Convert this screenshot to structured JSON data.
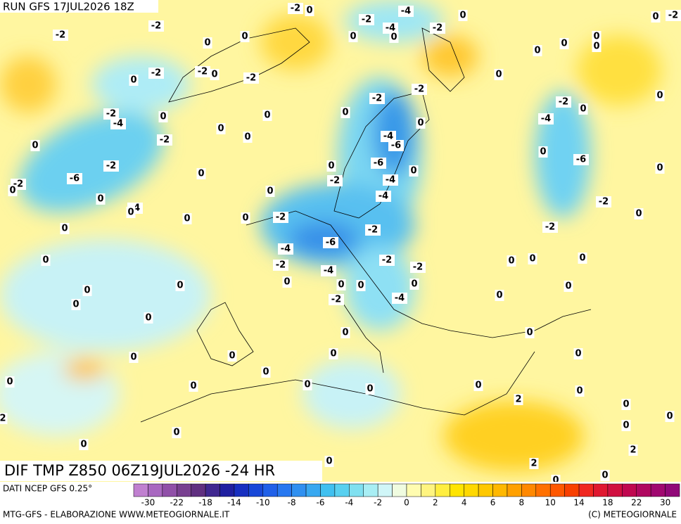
{
  "header": {
    "run": "RUN GFS 17JUL2026 18Z"
  },
  "map": {
    "title": "DIF TMP Z850 06Z19JUL2026 -24 HR",
    "contour_labels": [
      -2,
      -4,
      -2,
      -4,
      -2,
      0,
      0,
      -2,
      -2,
      -2,
      0,
      0,
      0,
      0,
      0,
      0,
      0,
      0,
      0,
      -2,
      -2,
      0,
      -2,
      0,
      0,
      -2,
      -2,
      0,
      -2,
      0,
      -2,
      -4,
      0,
      0,
      0,
      0,
      0,
      -2,
      0,
      -4,
      -6,
      -4,
      0,
      0,
      -6,
      -2,
      -6,
      0,
      -6,
      0,
      0,
      0,
      -2,
      0,
      -2,
      -4,
      0,
      -4,
      -4,
      -2,
      0,
      0,
      0,
      0,
      -2,
      0,
      0,
      -2,
      -2,
      -4,
      -6,
      0,
      -2,
      -2,
      -4,
      -2,
      0,
      0,
      0,
      0,
      0,
      0,
      0,
      0,
      0,
      0,
      0,
      -2,
      -4,
      0,
      0,
      0,
      0,
      0,
      0,
      0,
      0,
      0,
      0,
      0,
      0,
      0,
      0,
      0,
      2,
      0,
      2,
      0,
      0,
      0,
      0,
      2,
      0,
      2,
      0,
      0
    ]
  },
  "legend": {
    "source": "DATI NCEP GFS 0.25°",
    "colors": [
      "#c080d0",
      "#a868c0",
      "#9050a8",
      "#784090",
      "#603080",
      "#402890",
      "#2020a0",
      "#1830c0",
      "#1848d8",
      "#2060e8",
      "#2878f0",
      "#3090f0",
      "#38a8f0",
      "#40c0f0",
      "#58d0f0",
      "#80e0f0",
      "#a8eef4",
      "#d0f6f8",
      "#f0fce0",
      "#fffcb0",
      "#fff480",
      "#ffee40",
      "#ffe400",
      "#ffd800",
      "#ffc800",
      "#ffb800",
      "#ffa000",
      "#ff8800",
      "#ff7000",
      "#ff5800",
      "#f84000",
      "#f02820",
      "#e01830",
      "#d01040",
      "#c00850",
      "#b00860",
      "#a00870",
      "#900878"
    ],
    "labels": [
      -30,
      -22,
      -18,
      -14,
      -10,
      -8,
      -6,
      -4,
      -2,
      0,
      2,
      4,
      6,
      8,
      10,
      14,
      18,
      22,
      30
    ]
  },
  "footer": {
    "credit": "MTG-GFS - ELABORAZIONE WWW.METEOGIORNALE.IT",
    "copyright": "(C) METEOGIORNALE"
  }
}
